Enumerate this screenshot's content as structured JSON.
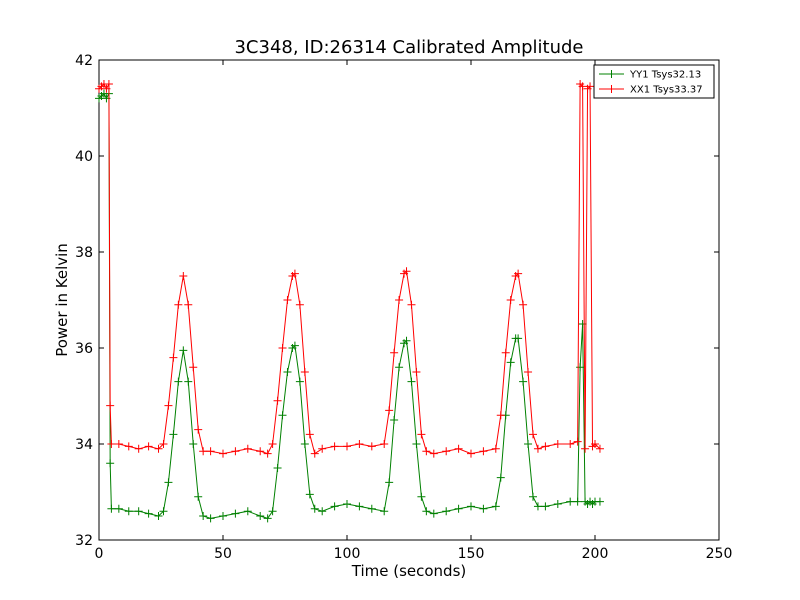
{
  "chart_data": {
    "type": "line",
    "title": "3C348, ID:26314 Calibrated Amplitude",
    "xlabel": "Time (seconds)",
    "ylabel": "Power in Kelvin",
    "xlim": [
      0,
      250
    ],
    "ylim": [
      32,
      42
    ],
    "xticks": [
      0,
      50,
      100,
      150,
      200,
      250
    ],
    "yticks": [
      32,
      34,
      36,
      38,
      40,
      42
    ],
    "xtick_labels": [
      "0",
      "50",
      "100",
      "150",
      "200",
      "250"
    ],
    "ytick_labels": [
      "32",
      "34",
      "36",
      "38",
      "40",
      "42"
    ],
    "grid": false,
    "legend_position": "top-right",
    "marker": "+",
    "series": [
      {
        "name": "YY1 Tsys32.13",
        "color": "#008000",
        "x": [
          0,
          1,
          2,
          3,
          4,
          4.5,
          5,
          8,
          12,
          16,
          20,
          24,
          26,
          28,
          30,
          32,
          34,
          36,
          38,
          40,
          42,
          45,
          50,
          55,
          60,
          65,
          68,
          70,
          72,
          74,
          76,
          78,
          79,
          81,
          83,
          85,
          87,
          90,
          95,
          100,
          105,
          110,
          115,
          117,
          119,
          121,
          123,
          124,
          126,
          128,
          130,
          132,
          135,
          140,
          145,
          150,
          155,
          160,
          162,
          164,
          166,
          168,
          169,
          171,
          173,
          175,
          177,
          180,
          185,
          190,
          193,
          194,
          195,
          196,
          197,
          198,
          199,
          200,
          202
        ],
        "y": [
          41.2,
          41.25,
          41.3,
          41.2,
          41.3,
          33.6,
          32.65,
          32.65,
          32.6,
          32.6,
          32.55,
          32.5,
          32.6,
          33.2,
          34.2,
          35.3,
          35.95,
          35.3,
          34.0,
          32.9,
          32.5,
          32.45,
          32.5,
          32.55,
          32.6,
          32.5,
          32.45,
          32.6,
          33.5,
          34.6,
          35.5,
          36.0,
          36.05,
          35.3,
          34.0,
          32.95,
          32.65,
          32.6,
          32.7,
          32.75,
          32.7,
          32.65,
          32.6,
          33.2,
          34.5,
          35.6,
          36.1,
          36.15,
          35.3,
          34.0,
          32.9,
          32.6,
          32.55,
          32.6,
          32.65,
          32.7,
          32.65,
          32.7,
          33.3,
          34.6,
          35.7,
          36.2,
          36.2,
          35.3,
          34.0,
          32.9,
          32.7,
          32.7,
          32.75,
          32.8,
          32.8,
          35.6,
          36.5,
          32.8,
          32.75,
          32.8,
          32.75,
          32.8,
          32.8
        ]
      },
      {
        "name": "XX1 Tsys33.37",
        "color": "#ff0000",
        "x": [
          0,
          1,
          2,
          3,
          4,
          4.5,
          5,
          8,
          12,
          16,
          20,
          24,
          26,
          28,
          30,
          32,
          34,
          36,
          38,
          40,
          42,
          45,
          50,
          55,
          60,
          65,
          68,
          70,
          72,
          74,
          76,
          78,
          79,
          81,
          83,
          85,
          87,
          90,
          95,
          100,
          105,
          110,
          115,
          117,
          119,
          121,
          123,
          124,
          126,
          128,
          130,
          132,
          135,
          140,
          145,
          150,
          155,
          160,
          162,
          164,
          166,
          168,
          169,
          171,
          173,
          175,
          177,
          180,
          185,
          190,
          193,
          194,
          195,
          196,
          197,
          198,
          199,
          200,
          202
        ],
        "y": [
          41.4,
          41.45,
          41.5,
          41.4,
          41.5,
          34.8,
          34.0,
          34.0,
          33.95,
          33.9,
          33.95,
          33.9,
          34.0,
          34.8,
          35.8,
          36.9,
          37.5,
          36.9,
          35.6,
          34.3,
          33.85,
          33.85,
          33.8,
          33.85,
          33.9,
          33.85,
          33.8,
          34.0,
          34.9,
          36.0,
          37.0,
          37.5,
          37.55,
          36.9,
          35.5,
          34.2,
          33.8,
          33.9,
          33.95,
          33.95,
          34.0,
          33.95,
          34.0,
          34.7,
          35.9,
          37.0,
          37.55,
          37.6,
          36.9,
          35.5,
          34.2,
          33.85,
          33.8,
          33.85,
          33.9,
          33.8,
          33.85,
          33.9,
          34.6,
          35.9,
          37.0,
          37.5,
          37.55,
          36.9,
          35.5,
          34.2,
          33.9,
          33.95,
          34.0,
          34.0,
          34.05,
          41.5,
          41.45,
          33.9,
          41.4,
          41.45,
          33.95,
          34.0,
          33.9
        ]
      }
    ]
  }
}
